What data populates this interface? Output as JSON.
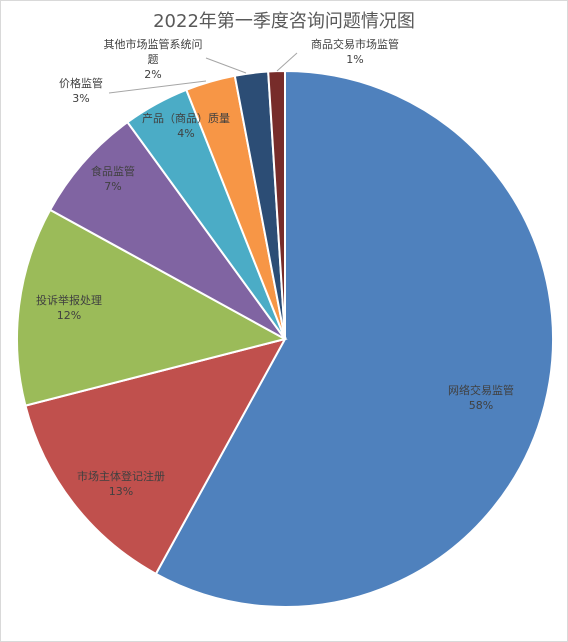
{
  "chart_data": {
    "type": "pie",
    "title": "2022年第一季度咨询问题情况图",
    "slices": [
      {
        "name": "网络交易监管",
        "value": 58,
        "label": "58%",
        "color": "#4F81BD",
        "label_lines": [
          "网络交易监管"
        ]
      },
      {
        "name": "市场主体登记注册",
        "value": 13,
        "label": "13%",
        "color": "#C0504D",
        "label_lines": [
          "市场主体登记注册"
        ]
      },
      {
        "name": "投诉举报处理",
        "value": 12,
        "label": "12%",
        "color": "#9BBB59",
        "label_lines": [
          "投诉举报处理"
        ]
      },
      {
        "name": "食品监管",
        "value": 7,
        "label": "7%",
        "color": "#8064A2",
        "label_lines": [
          "食品监管"
        ]
      },
      {
        "name": "产品（商品）质量",
        "value": 4,
        "label": "4%",
        "color": "#4BACC6",
        "label_lines": [
          "产品（商品）质量"
        ]
      },
      {
        "name": "价格监管",
        "value": 3,
        "label": "3%",
        "color": "#F79646",
        "label_lines": [
          "价格监管"
        ]
      },
      {
        "name": "其他市场监管系统问题",
        "value": 2,
        "label": "2%",
        "color": "#2C4D75",
        "label_lines": [
          "其他市场监管系统问",
          "题"
        ]
      },
      {
        "name": "商品交易市场监管",
        "value": 1,
        "label": "1%",
        "color": "#772C2A",
        "label_lines": [
          "商品交易市场监管"
        ]
      }
    ],
    "legend": "none",
    "start_angle": "12 o'clock",
    "direction": "clockwise"
  }
}
